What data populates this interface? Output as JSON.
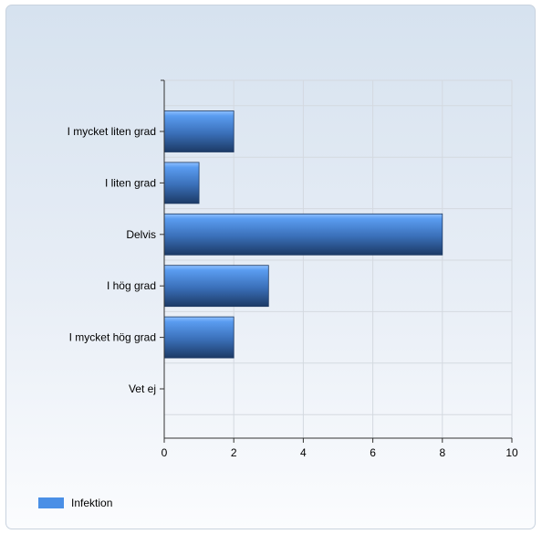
{
  "chart_data": {
    "type": "bar",
    "orientation": "horizontal",
    "categories": [
      "I mycket liten grad",
      "I liten grad",
      "Delvis",
      "I hög grad",
      "I mycket hög grad",
      "Vet ej"
    ],
    "series": [
      {
        "name": "Infektion",
        "values": [
          2,
          1,
          8,
          3,
          2,
          0
        ],
        "color": "#4a8fe6"
      }
    ],
    "xticks": [
      "0",
      "2",
      "4",
      "6",
      "8",
      "10"
    ],
    "xlim": [
      0,
      10
    ],
    "grid": true,
    "legend_position": "bottom-left"
  }
}
